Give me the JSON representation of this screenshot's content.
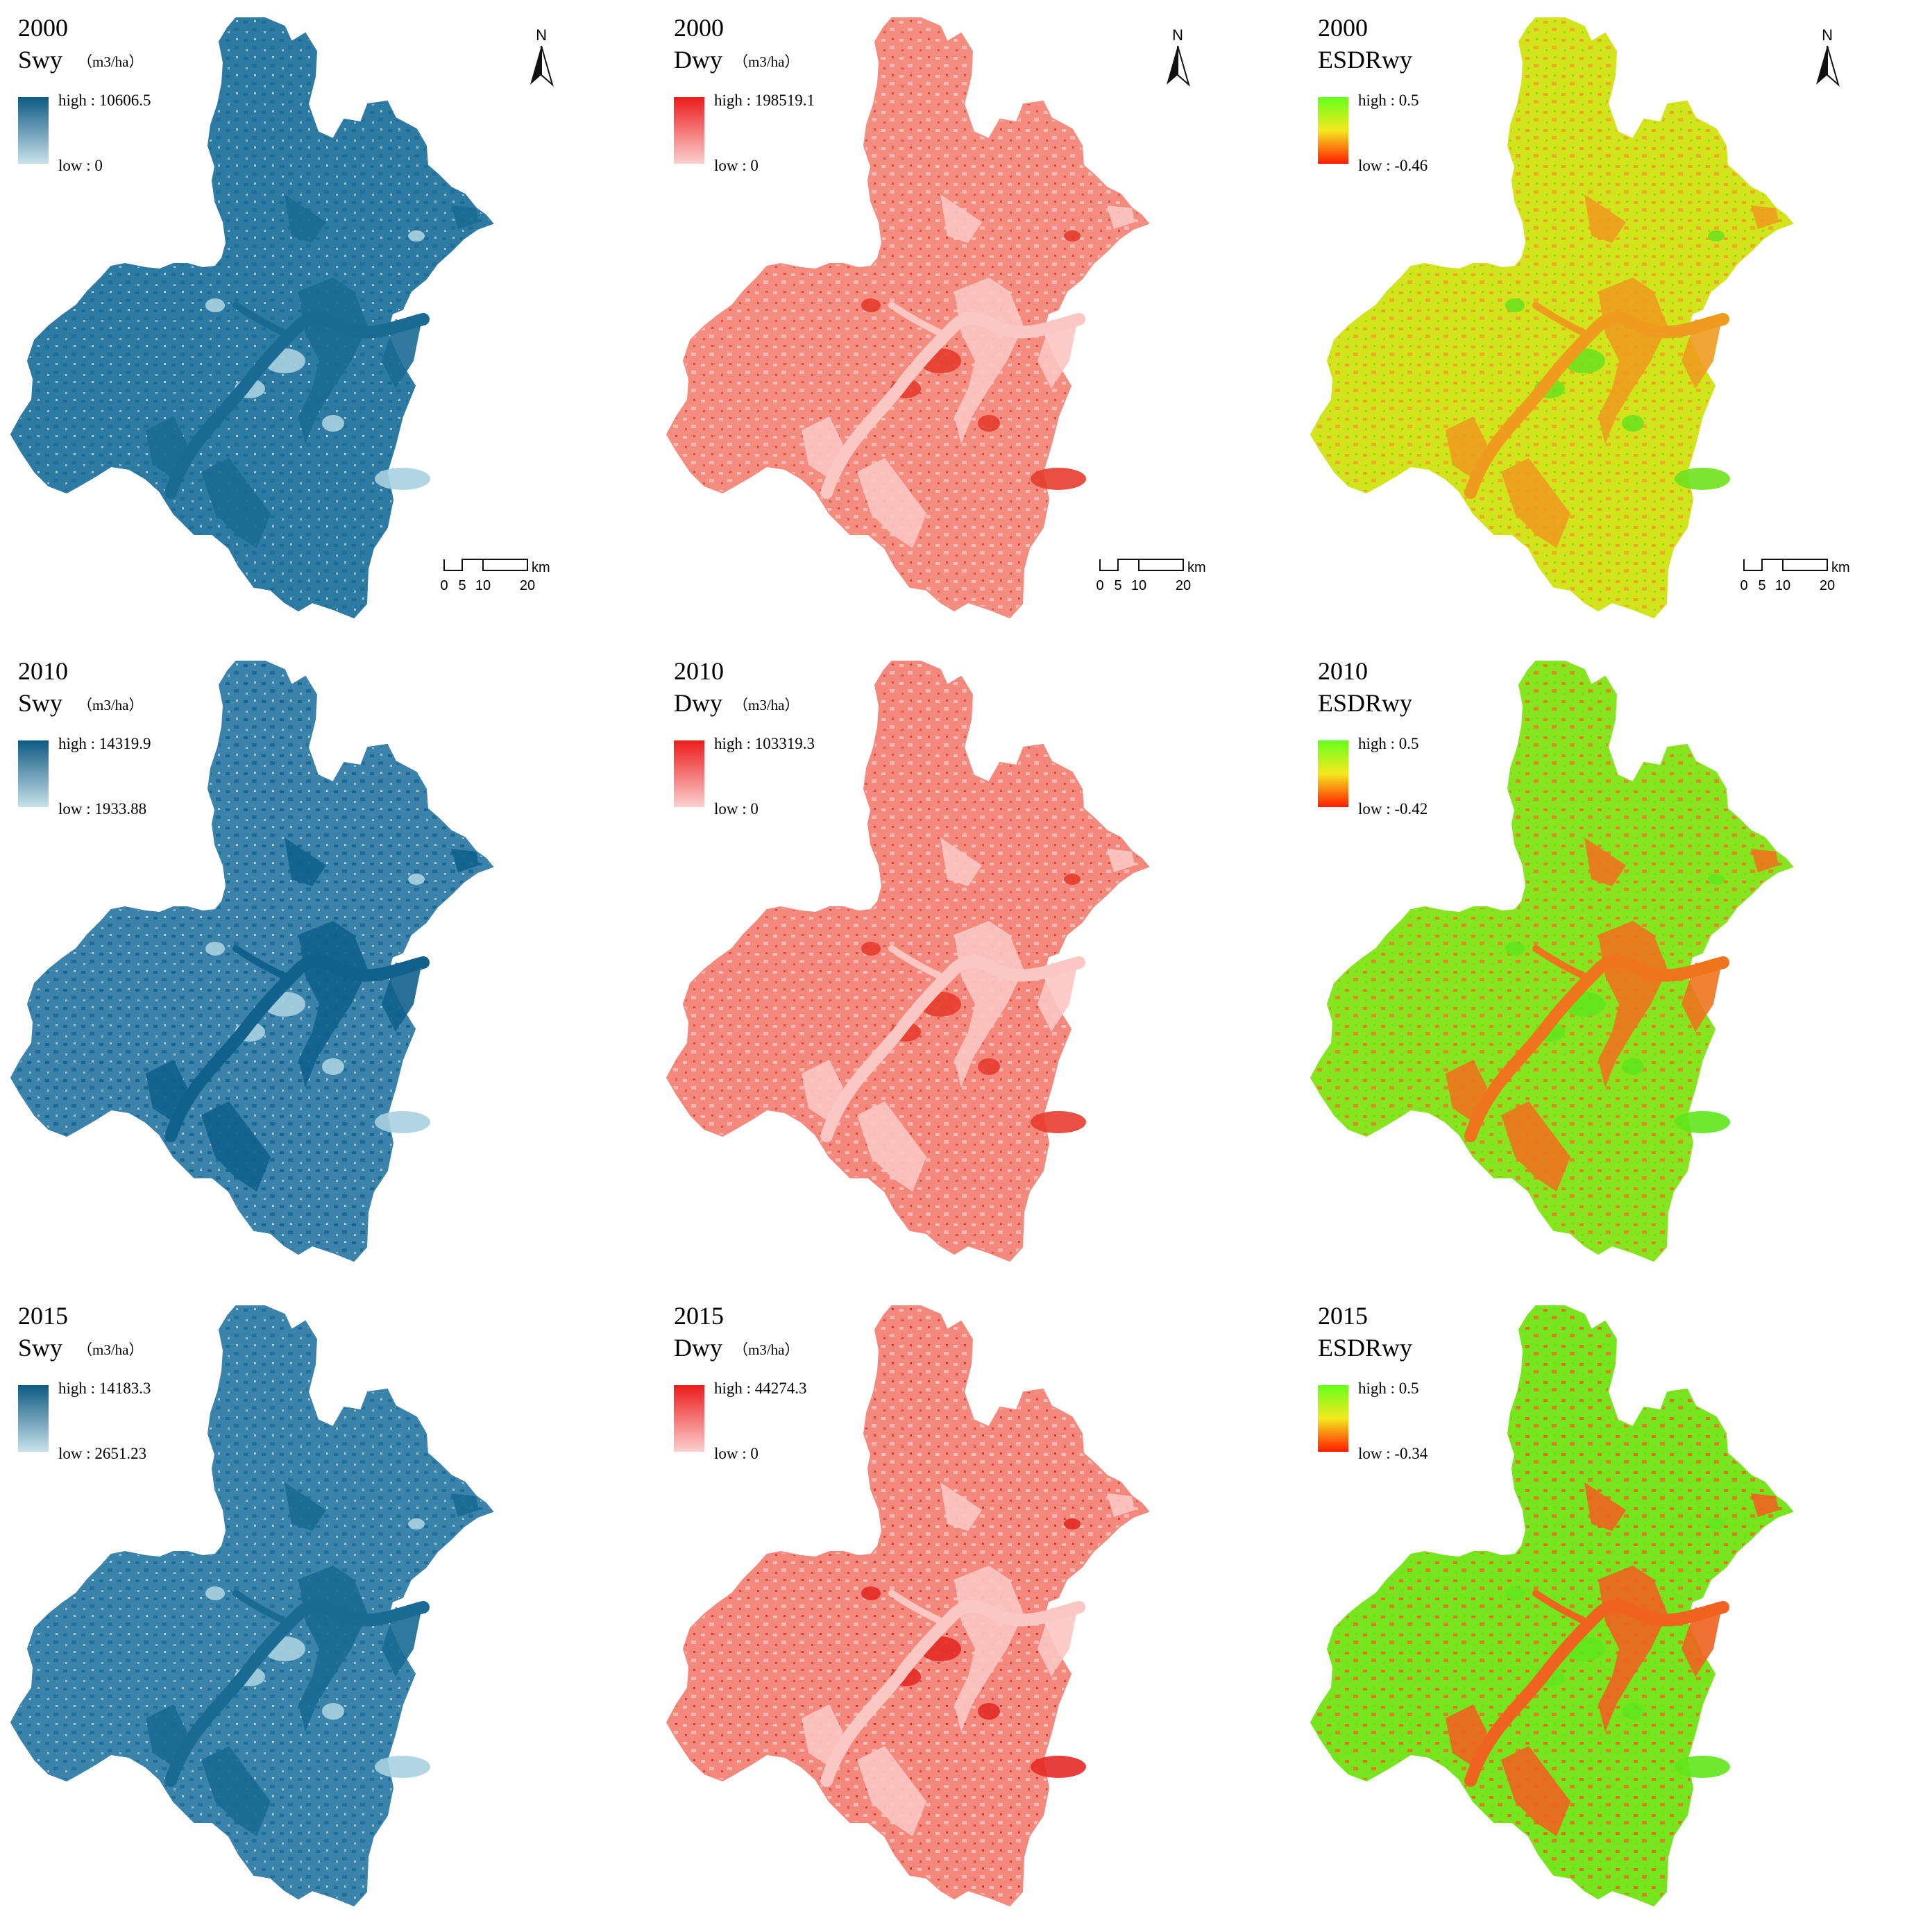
{
  "figure_type": "multi-panel thematic raster map grid (3 years x 3 variables)",
  "variables": [
    {
      "id": "swy",
      "name": "Swy",
      "unit": "（m3/ha）",
      "ramp": [
        "#0e5a83",
        "#c8e1ea"
      ],
      "ramp_labels": [
        "high",
        "low"
      ]
    },
    {
      "id": "dwy",
      "name": "Dwy",
      "unit": "（m3/ha）",
      "ramp": [
        "#ec1c1c",
        "#fcd0d0"
      ],
      "ramp_labels": [
        "high",
        "low"
      ]
    },
    {
      "id": "esdr",
      "name": "ESDRwy",
      "unit": "",
      "ramp": [
        "#66ff1a",
        "#f5e81e",
        "#ff1a00"
      ],
      "ramp_labels": [
        "high",
        "low"
      ]
    }
  ],
  "panels": [
    {
      "year": "2000",
      "variable": "Swy",
      "unit": "（m3/ha）",
      "high": "high : 10606.5",
      "low": "low : 0",
      "north_arrow": true,
      "scale_bar": true,
      "class_colors": [
        "#2d7aa3",
        "#1b6a94",
        "#a8d0df"
      ]
    },
    {
      "year": "2000",
      "variable": "Dwy",
      "unit": "（m3/ha）",
      "high": "high : 198519.1",
      "low": "low : 0",
      "north_arrow": true,
      "scale_bar": true,
      "class_colors": [
        "#f58c80",
        "#fbc7c2",
        "#e73c2e"
      ]
    },
    {
      "year": "2000",
      "variable": "ESDRwy",
      "unit": "",
      "high": "high : 0.5",
      "low": "low : -0.46",
      "north_arrow": true,
      "scale_bar": true,
      "class_colors": [
        "#d2e41c",
        "#ee9b1e",
        "#6ee21d"
      ]
    },
    {
      "year": "2010",
      "variable": "Swy",
      "unit": "（m3/ha）",
      "high": "high : 14319.9",
      "low": "low : 1933.88",
      "north_arrow": false,
      "scale_bar": false,
      "class_colors": [
        "#3b83ab",
        "#11618c",
        "#a8d0df"
      ]
    },
    {
      "year": "2010",
      "variable": "Dwy",
      "unit": "（m3/ha）",
      "high": "high : 103319.3",
      "low": "low : 0",
      "north_arrow": false,
      "scale_bar": false,
      "class_colors": [
        "#f5887c",
        "#fbc7c2",
        "#e73c2e"
      ]
    },
    {
      "year": "2010",
      "variable": "ESDRwy",
      "unit": "",
      "high": "high : 0.5",
      "low": "low : -0.42",
      "north_arrow": false,
      "scale_bar": false,
      "class_colors": [
        "#86e51f",
        "#f0731e",
        "#5fe51c"
      ]
    },
    {
      "year": "2015",
      "variable": "Swy",
      "unit": "（m3/ha）",
      "high": "high : 14183.3",
      "low": "low : 2651.23",
      "north_arrow": false,
      "scale_bar": false,
      "class_colors": [
        "#3a83ab",
        "#1a6a93",
        "#a8d0df"
      ]
    },
    {
      "year": "2015",
      "variable": "Dwy",
      "unit": "（m3/ha）",
      "high": "high : 44274.3",
      "low": "low : 0",
      "north_arrow": false,
      "scale_bar": false,
      "class_colors": [
        "#f5887c",
        "#fbc7c2",
        "#e42a26"
      ]
    },
    {
      "year": "2015",
      "variable": "ESDRwy",
      "unit": "",
      "high": "high : 0.5",
      "low": "low : -0.34",
      "north_arrow": false,
      "scale_bar": false,
      "class_colors": [
        "#77e51e",
        "#f0621f",
        "#5fe51c"
      ]
    }
  ],
  "north_label": "N",
  "scale_bar": {
    "ticks": [
      "0",
      "5",
      "10",
      "20"
    ],
    "unit": "km"
  }
}
